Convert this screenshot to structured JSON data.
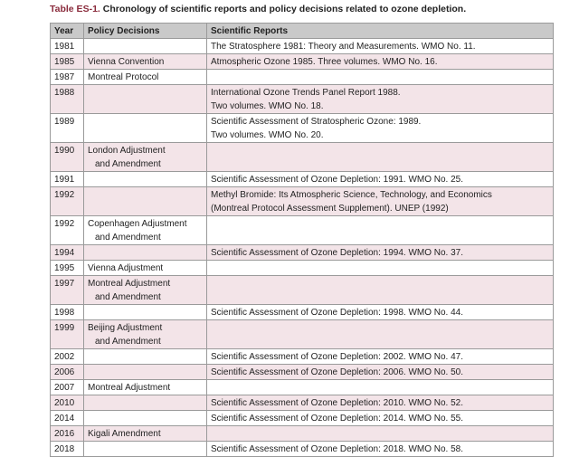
{
  "title": {
    "label": "Table ES-1.",
    "text": "Chronology of scientific reports and policy decisions related to ozone depletion."
  },
  "table": {
    "headers": [
      "Year",
      "Policy Decisions",
      "Scientific Reports"
    ],
    "rows": [
      {
        "year": "1981",
        "policy": [],
        "reports": [
          "The Stratosphere 1981: Theory and Measurements. WMO No. 11."
        ]
      },
      {
        "year": "1985",
        "policy": [
          "Vienna Convention"
        ],
        "reports": [
          "Atmospheric Ozone 1985. Three volumes. WMO No. 16."
        ]
      },
      {
        "year": "1987",
        "policy": [
          "Montreal Protocol"
        ],
        "reports": []
      },
      {
        "year": "1988",
        "policy": [],
        "reports": [
          "International Ozone Trends Panel Report 1988.",
          "Two volumes. WMO No. 18."
        ]
      },
      {
        "year": "1989",
        "policy": [],
        "reports": [
          "Scientific Assessment of Stratospheric Ozone: 1989.",
          "Two volumes. WMO No. 20."
        ]
      },
      {
        "year": "1990",
        "policy": [
          "London Adjustment",
          "and Amendment"
        ],
        "reports": []
      },
      {
        "year": "1991",
        "policy": [],
        "reports": [
          "Scientific Assessment of Ozone Depletion: 1991. WMO No. 25."
        ]
      },
      {
        "year": "1992",
        "policy": [],
        "reports": [
          "Methyl Bromide: Its Atmospheric Science, Technology, and Economics",
          "(Montreal Protocol Assessment Supplement). UNEP (1992)"
        ]
      },
      {
        "year": "1992",
        "policy": [
          "Copenhagen Adjustment",
          "and Amendment"
        ],
        "reports": []
      },
      {
        "year": "1994",
        "policy": [],
        "reports": [
          "Scientific Assessment of Ozone Depletion: 1994. WMO No. 37."
        ]
      },
      {
        "year": "1995",
        "policy": [
          "Vienna Adjustment"
        ],
        "reports": []
      },
      {
        "year": "1997",
        "policy": [
          "Montreal Adjustment",
          "and Amendment"
        ],
        "reports": []
      },
      {
        "year": "1998",
        "policy": [],
        "reports": [
          "Scientific Assessment of Ozone Depletion: 1998. WMO No. 44."
        ]
      },
      {
        "year": "1999",
        "policy": [
          "Beijing Adjustment",
          "and Amendment"
        ],
        "reports": []
      },
      {
        "year": "2002",
        "policy": [],
        "reports": [
          "Scientific Assessment of Ozone Depletion: 2002. WMO No. 47."
        ]
      },
      {
        "year": "2006",
        "policy": [],
        "reports": [
          "Scientific Assessment of Ozone Depletion: 2006. WMO No. 50."
        ]
      },
      {
        "year": "2007",
        "policy": [
          "Montreal Adjustment"
        ],
        "reports": []
      },
      {
        "year": "2010",
        "policy": [],
        "reports": [
          "Scientific Assessment of Ozone Depletion: 2010. WMO No. 52."
        ]
      },
      {
        "year": "2014",
        "policy": [],
        "reports": [
          "Scientific Assessment of Ozone Depletion: 2014. WMO No. 55."
        ]
      },
      {
        "year": "2016",
        "policy": [
          "Kigali Amendment"
        ],
        "reports": []
      },
      {
        "year": "2018",
        "policy": [],
        "reports": [
          "Scientific Assessment of Ozone Depletion: 2018. WMO No. 58."
        ]
      }
    ]
  }
}
